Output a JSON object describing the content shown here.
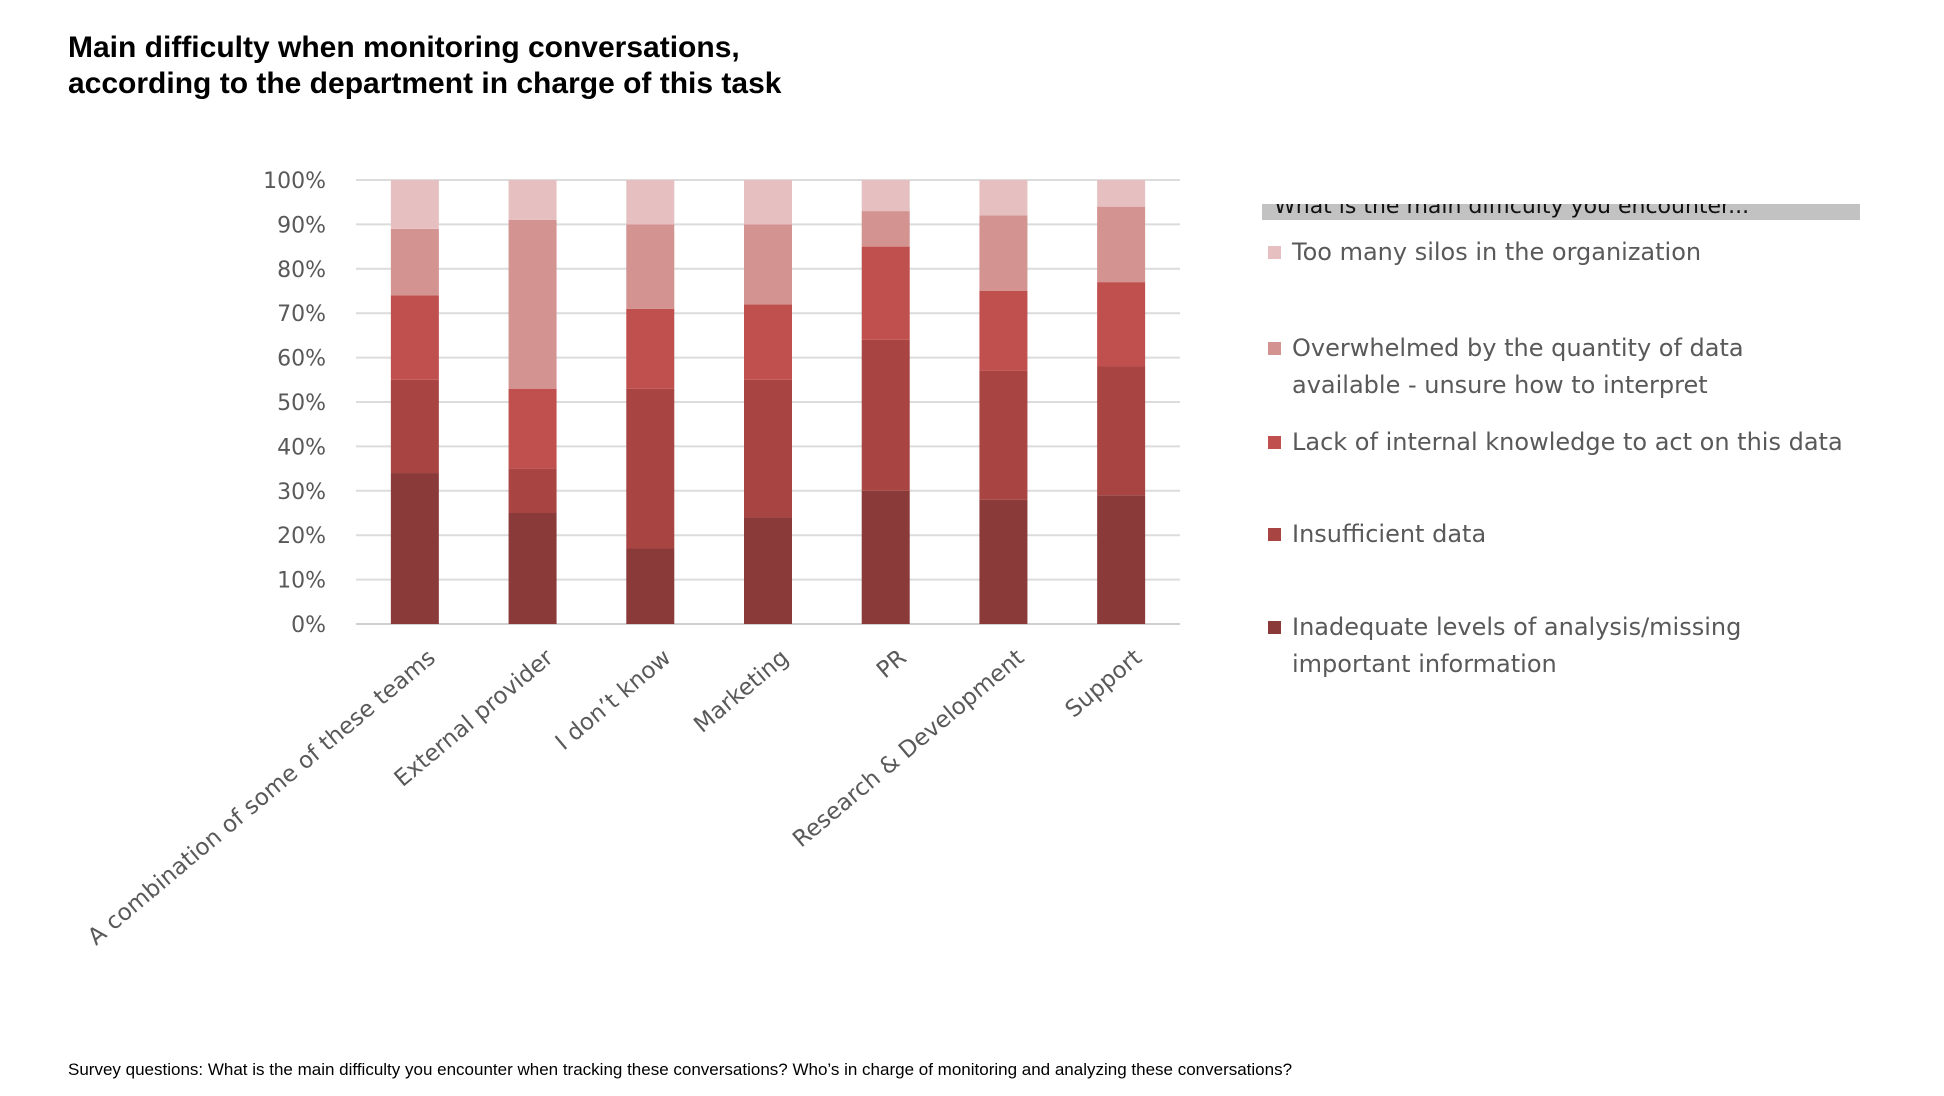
{
  "title": {
    "line1": "Main difficulty when monitoring conversations,",
    "line2": "according to the department in charge of this task"
  },
  "chart_data": {
    "type": "bar",
    "stacked": true,
    "percent": true,
    "categories": [
      "A combination of some of these teams",
      "External provider",
      "I don’t know",
      "Marketing",
      "PR",
      "Research & Development",
      "Support"
    ],
    "series": [
      {
        "name": "Inadequate levels of analysis/missing important information",
        "color": "#8b3a3a",
        "values": [
          34,
          25,
          17,
          24,
          30,
          28,
          29
        ]
      },
      {
        "name": "Insufficient data",
        "color": "#a84442",
        "values": [
          21,
          10,
          36,
          31,
          34,
          29,
          29
        ]
      },
      {
        "name": "Lack of internal knowledge to act on this data",
        "color": "#c0504d",
        "values": [
          19,
          18,
          18,
          17,
          21,
          18,
          19
        ]
      },
      {
        "name": "Overwhelmed by the quantity of data available - unsure how to interpret",
        "color": "#d39391",
        "values": [
          15,
          38,
          19,
          18,
          8,
          17,
          17
        ]
      },
      {
        "name": "Too many silos in the organization",
        "color": "#e6c0c0",
        "values": [
          11,
          9,
          10,
          10,
          7,
          8,
          6
        ]
      }
    ],
    "yticks": [
      "0%",
      "10%",
      "20%",
      "30%",
      "40%",
      "50%",
      "60%",
      "70%",
      "80%",
      "90%",
      "100%"
    ],
    "ylim": [
      0,
      100
    ],
    "xlabel": "",
    "ylabel": "",
    "grid": true,
    "legend_position": "right",
    "legend_header": "What is the main difficulty you encounter...",
    "legend_entries": [
      {
        "label_lines": [
          "Too many silos in the organization"
        ],
        "color": "#e6c0c0"
      },
      {
        "label_lines": [
          "Overwhelmed by the quantity of data",
          "available - unsure how to interpret"
        ],
        "color": "#d39391"
      },
      {
        "label_lines": [
          "Lack of internal knowledge to act on this data"
        ],
        "color": "#c0504d"
      },
      {
        "label_lines": [
          "Insufficient data"
        ],
        "color": "#a84442"
      },
      {
        "label_lines": [
          "Inadequate levels of analysis/missing",
          "important information"
        ],
        "color": "#8b3a3a"
      }
    ]
  },
  "footnote": "Survey questions: What is the main difficulty you encounter when tracking these conversations? Who’s in charge of monitoring and analyzing these conversations?"
}
